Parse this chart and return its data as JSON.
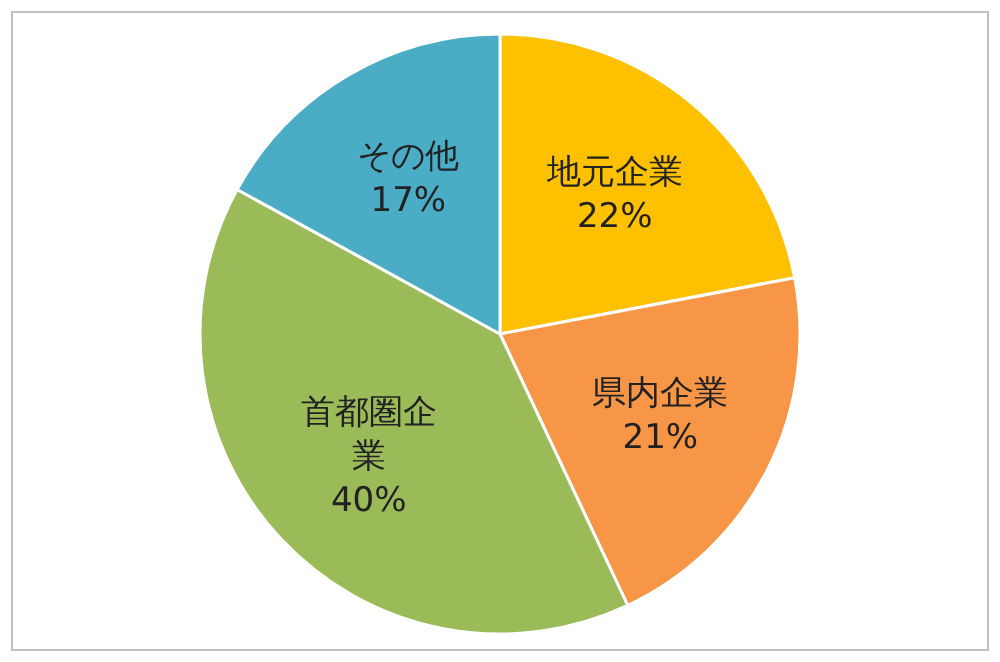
{
  "chart_data": {
    "type": "pie",
    "categories": [
      "地元企業",
      "県内企業",
      "首都圏企業",
      "その他"
    ],
    "values": [
      22,
      21,
      40,
      17
    ],
    "colors": [
      "#ffc000",
      "#f79646",
      "#9bbb59",
      "#4bacc6"
    ],
    "value_labels": [
      "22%",
      "21%",
      "40%",
      "17%"
    ]
  }
}
